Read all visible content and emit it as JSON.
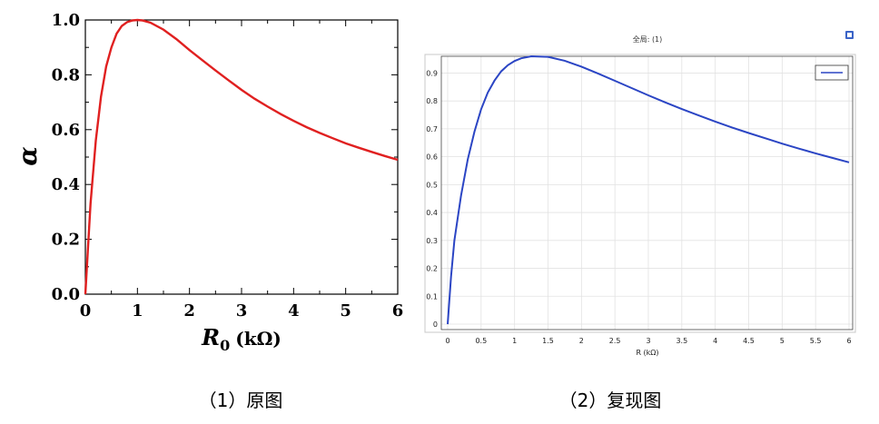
{
  "left_chart": {
    "ylabel": "α",
    "xlabel_var": "R",
    "xlabel_sub": "0",
    "xlabel_unit": "(kΩ)",
    "caption": "（1）原图"
  },
  "right_chart": {
    "title": "全局: (1)",
    "xlabel": "R (kΩ)",
    "caption": "（2）复现图"
  },
  "colors": {
    "original_curve": "#e02020",
    "reproduction_curve": "#2b45c4"
  },
  "chart_data": [
    {
      "type": "line",
      "title": "",
      "xlabel": "R0 (kΩ)",
      "ylabel": "α",
      "xlim": [
        0,
        6
      ],
      "ylim": [
        0,
        1.0
      ],
      "x_ticks": [
        "0",
        "1",
        "2",
        "3",
        "4",
        "5",
        "6"
      ],
      "y_ticks": [
        "0.0",
        "0.2",
        "0.4",
        "0.6",
        "0.8",
        "1.0"
      ],
      "grid": false,
      "series": [
        {
          "color": "#e02020",
          "x": [
            0,
            0.05,
            0.1,
            0.2,
            0.3,
            0.4,
            0.5,
            0.6,
            0.7,
            0.8,
            0.9,
            1.0,
            1.1,
            1.25,
            1.5,
            1.75,
            2.0,
            2.25,
            2.5,
            2.75,
            3.0,
            3.25,
            3.5,
            3.75,
            4.0,
            4.25,
            4.5,
            4.75,
            5.0,
            5.25,
            5.5,
            5.75,
            6.0
          ],
          "y": [
            0.0,
            0.17,
            0.33,
            0.56,
            0.72,
            0.83,
            0.9,
            0.95,
            0.978,
            0.992,
            0.998,
            1.0,
            0.998,
            0.99,
            0.965,
            0.93,
            0.89,
            0.853,
            0.816,
            0.78,
            0.745,
            0.713,
            0.684,
            0.657,
            0.632,
            0.609,
            0.588,
            0.569,
            0.55,
            0.534,
            0.519,
            0.504,
            0.49
          ]
        }
      ]
    },
    {
      "type": "line",
      "title": "全局: (1)",
      "xlabel": "R (kΩ)",
      "ylabel": "",
      "xlim": [
        0,
        6
      ],
      "ylim": [
        0,
        0.96
      ],
      "x_ticks": [
        "0",
        "0.5",
        "1",
        "1.5",
        "2",
        "2.5",
        "3",
        "3.5",
        "4",
        "4.5",
        "5",
        "5.5",
        "6"
      ],
      "y_ticks": [
        "0",
        "0.1",
        "0.2",
        "0.3",
        "0.4",
        "0.5",
        "0.6",
        "0.7",
        "0.8",
        "0.9"
      ],
      "grid": true,
      "legend": "top-right",
      "series": [
        {
          "color": "#2b45c4",
          "x": [
            0,
            0.05,
            0.1,
            0.2,
            0.3,
            0.4,
            0.5,
            0.6,
            0.7,
            0.8,
            0.9,
            1.0,
            1.1,
            1.25,
            1.5,
            1.75,
            2.0,
            2.25,
            2.5,
            2.75,
            3.0,
            3.25,
            3.5,
            3.75,
            4.0,
            4.25,
            4.5,
            4.75,
            5.0,
            5.25,
            5.5,
            5.75,
            6.0
          ],
          "y": [
            0.0,
            0.17,
            0.3,
            0.46,
            0.59,
            0.69,
            0.77,
            0.83,
            0.873,
            0.906,
            0.928,
            0.943,
            0.953,
            0.96,
            0.958,
            0.944,
            0.923,
            0.898,
            0.872,
            0.846,
            0.82,
            0.795,
            0.771,
            0.748,
            0.726,
            0.705,
            0.685,
            0.666,
            0.647,
            0.629,
            0.612,
            0.596,
            0.58
          ]
        }
      ]
    }
  ]
}
